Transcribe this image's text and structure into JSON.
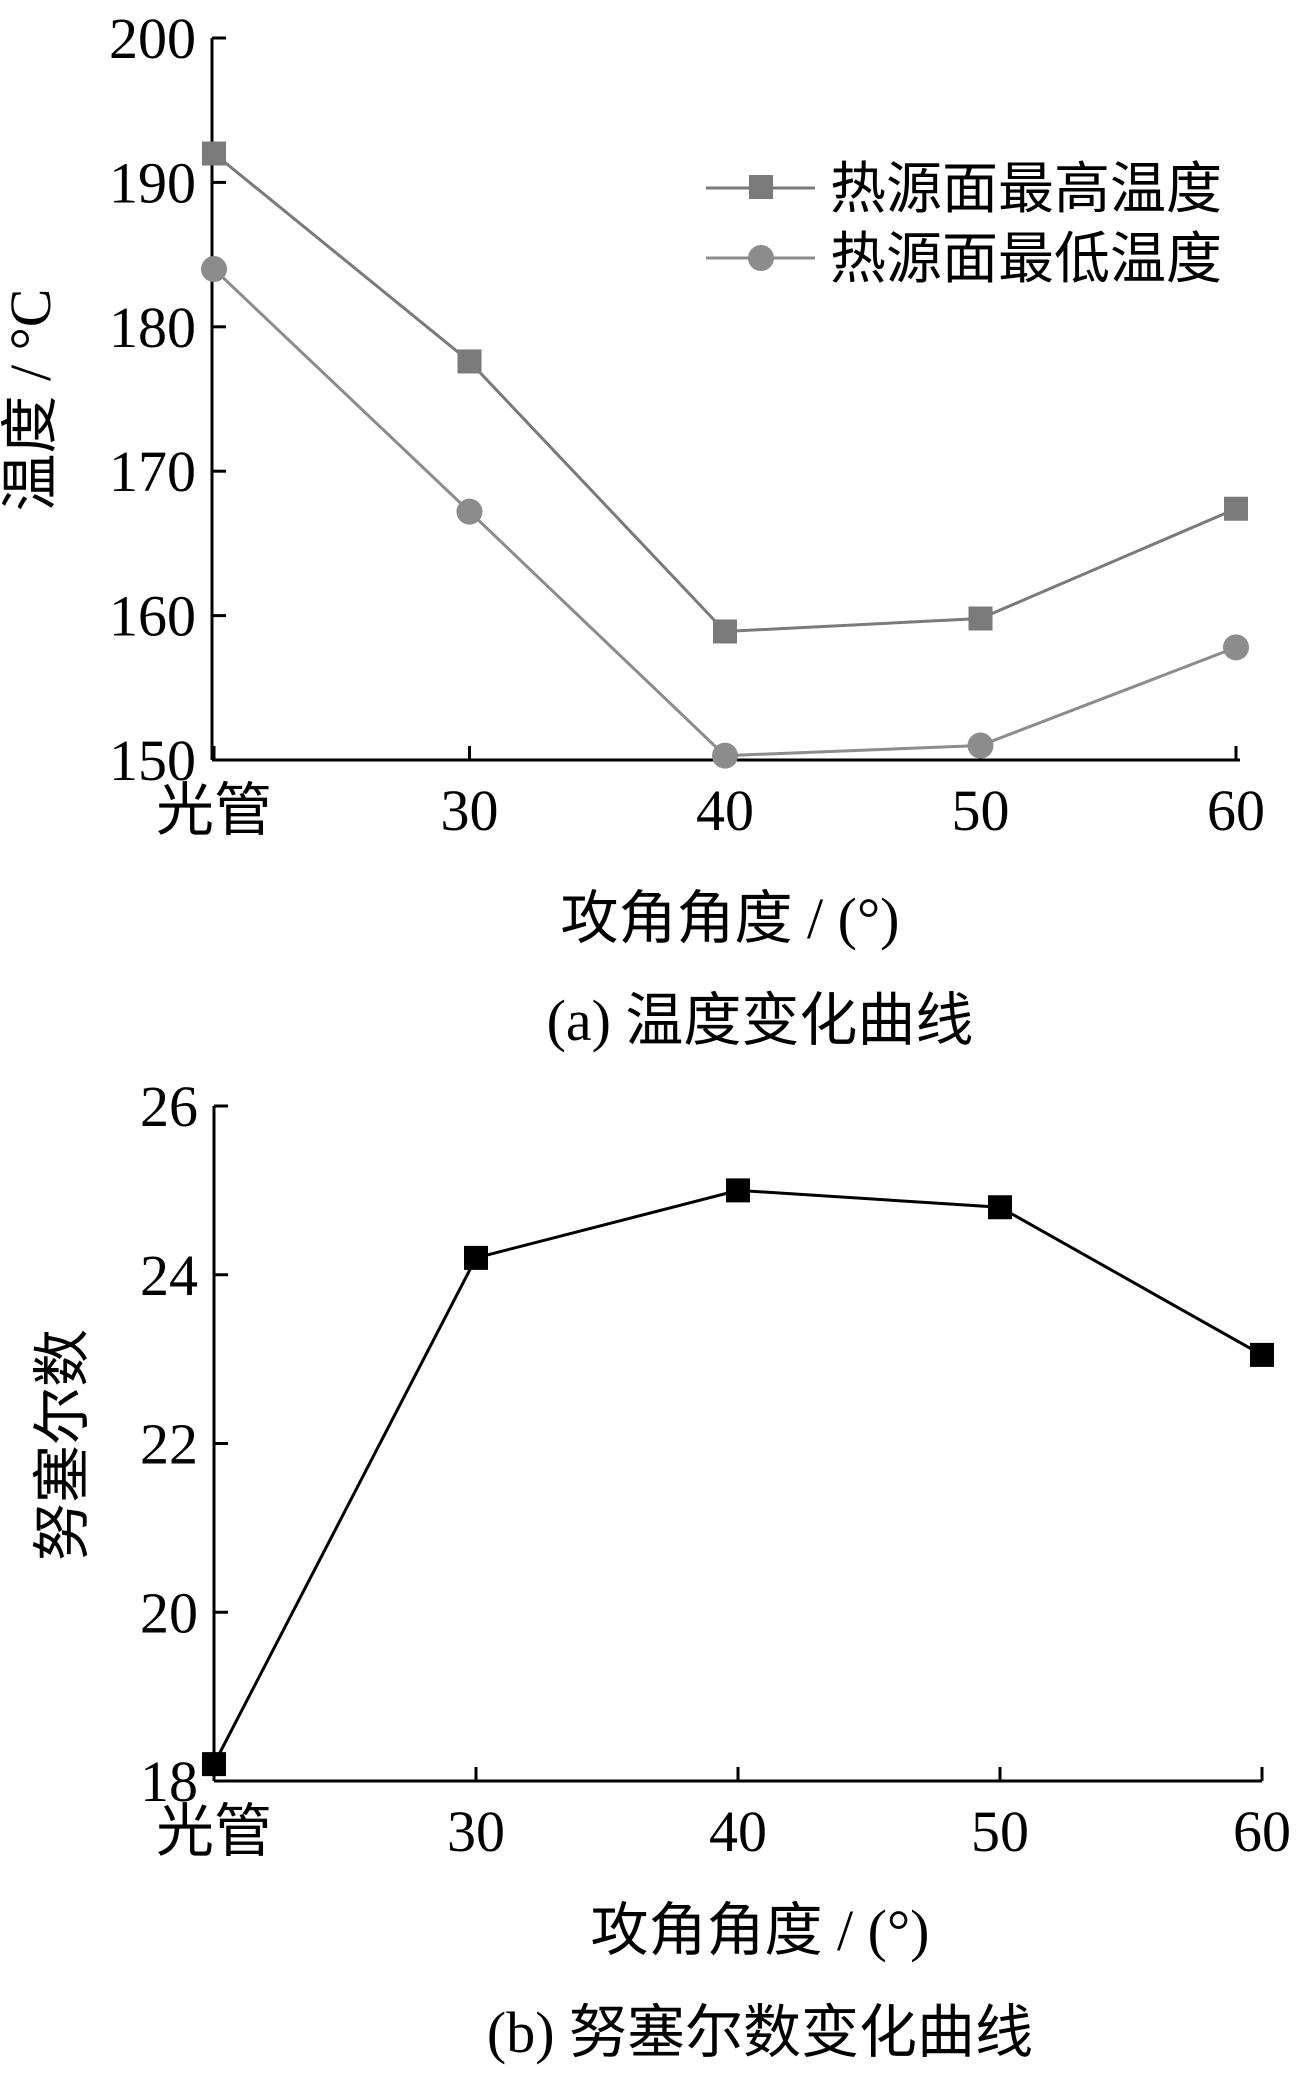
{
  "chart_data": [
    {
      "panel": "a",
      "type": "line",
      "title": "(a)  温度变化曲线",
      "xlabel": "攻角角度 / (°)",
      "ylabel": "温度 / °C",
      "categories": [
        "光管",
        "30",
        "40",
        "50",
        "60"
      ],
      "y_ticks": [
        "150",
        "160",
        "170",
        "180",
        "190",
        "200"
      ],
      "ylim": [
        150,
        200
      ],
      "legend_position": "top-right",
      "series": [
        {
          "name": "热源面最高温度",
          "marker": "square",
          "color": "#7a7a7a",
          "values": [
            192,
            177.6,
            158.9,
            159.8,
            167.4
          ]
        },
        {
          "name": "热源面最低温度",
          "marker": "circle",
          "color": "#8c8c8c",
          "values": [
            184,
            167.2,
            150.3,
            151.0,
            157.8
          ]
        }
      ]
    },
    {
      "panel": "b",
      "type": "line",
      "title": "(b)  努塞尔数变化曲线",
      "xlabel": "攻角角度 / (°)",
      "ylabel": "努塞尔数",
      "categories": [
        "光管",
        "30",
        "40",
        "50",
        "60"
      ],
      "y_ticks": [
        "18",
        "20",
        "22",
        "24",
        "26"
      ],
      "ylim": [
        18,
        26
      ],
      "series": [
        {
          "marker": "square",
          "color": "#000000",
          "values": [
            18.2,
            24.2,
            25.0,
            24.8,
            23.05
          ]
        }
      ]
    }
  ]
}
